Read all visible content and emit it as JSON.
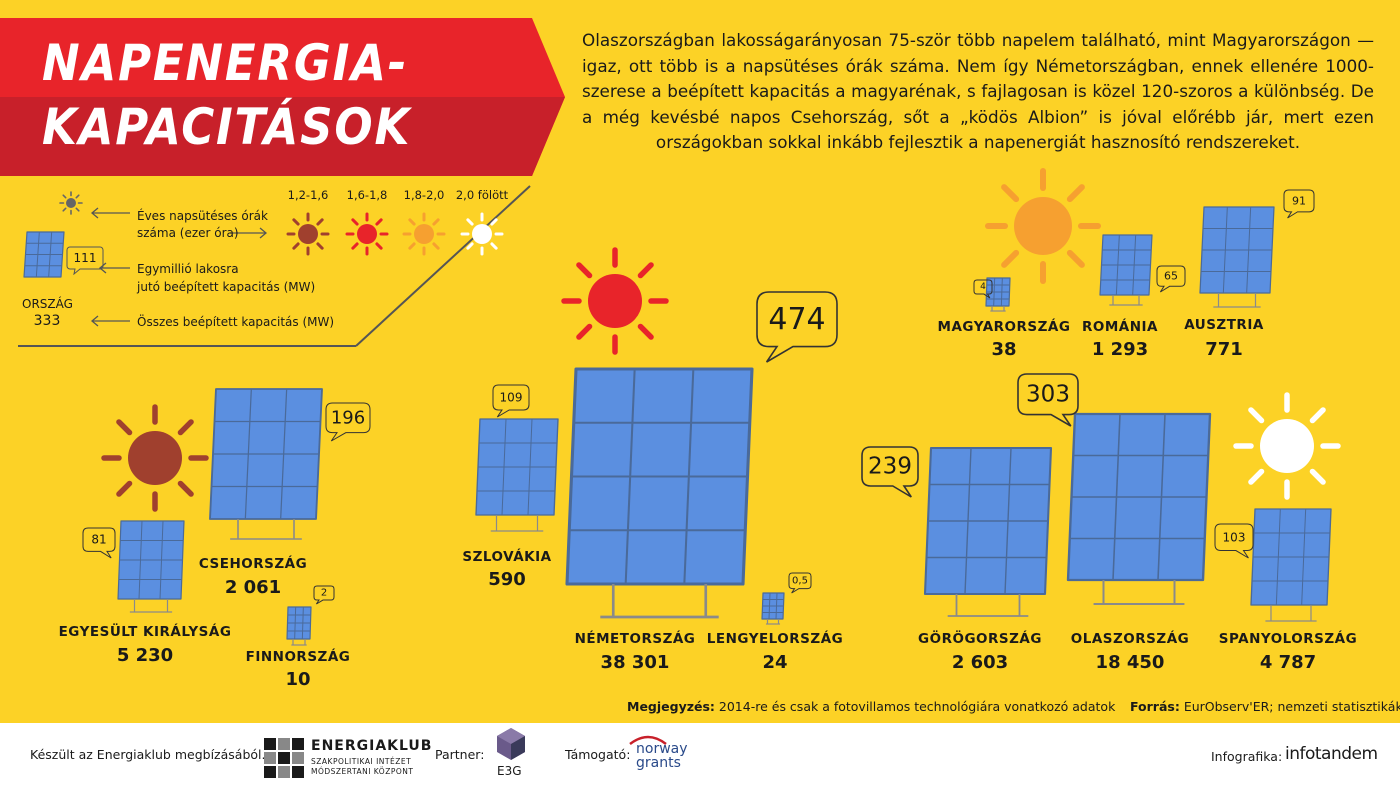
{
  "title": {
    "line1": "NAPENERGIA-",
    "line2": "KAPACITÁSOK"
  },
  "intro": "Olaszországban lakosságarányosan 75-ször több napelem található, mint Magyarországon — igaz, ott több is a napsütéses órák száma. Nem így Németországban, ennek ellenére 1000-szerese a beépített kapacitás a magyarénak, s fajlagosan is közel 120-szoros a különbség. De a még kevésbé napos Csehország, sőt a „ködös Albion” is jóval előrébb jár, mert ezen országokban sokkal inkább fejlesztik a napenergiát hasznosító rendszereket.",
  "legend": {
    "sun_label_1": "Éves napsütéses órák",
    "sun_label_2": "száma (ezer óra)",
    "cap_label_1": "Egymillió lakosra",
    "cap_label_2": "jutó beépített kapacitás (MW)",
    "total_label": "Összes beépített kapacitás (MW)",
    "example_bubble": "111",
    "example_country": "ORSZÁG",
    "example_total": "333",
    "ranges": [
      "1,2-1,6",
      "1,6-1,8",
      "1,8-2,0",
      "2,0 fölött"
    ],
    "range_colors": [
      "#a0402e",
      "#e8242a",
      "#f6a030",
      "#ffffff"
    ],
    "neutral_sun_color": "#666666"
  },
  "countries": [
    {
      "name": "MAGYARORSZÁG",
      "per_million": "4",
      "total": "38",
      "sun": "1,8-2,0"
    },
    {
      "name": "ROMÁNIA",
      "per_million": "65",
      "total": "1 293",
      "sun": "1,8-2,0"
    },
    {
      "name": "AUSZTRIA",
      "per_million": "91",
      "total": "771",
      "sun": "1,8-2,0"
    },
    {
      "name": "CSEHORSZÁG",
      "per_million": "196",
      "total": "2 061",
      "sun": "1,2-1,6"
    },
    {
      "name": "EGYESÜLT KIRÁLYSÁG",
      "per_million": "81",
      "total": "5 230",
      "sun": "1,2-1,6"
    },
    {
      "name": "FINNORSZÁG",
      "per_million": "2",
      "total": "10",
      "sun": "1,2-1,6"
    },
    {
      "name": "SZLOVÁKIA",
      "per_million": "109",
      "total": "590",
      "sun": "1,6-1,8"
    },
    {
      "name": "NÉMETORSZÁG",
      "per_million": "474",
      "total": "38 301",
      "sun": "1,6-1,8"
    },
    {
      "name": "LENGYELORSZÁG",
      "per_million": "0,5",
      "total": "24",
      "sun": "1,6-1,8"
    },
    {
      "name": "GÖRÖGORSZÁG",
      "per_million": "239",
      "total": "2 603",
      "sun": "2,0 fölött"
    },
    {
      "name": "OLASZORSZÁG",
      "per_million": "303",
      "total": "18 450",
      "sun": "2,0 fölött"
    },
    {
      "name": "SPANYOLORSZÁG",
      "per_million": "103",
      "total": "4 787",
      "sun": "2,0 fölött"
    }
  ],
  "note": {
    "label": "Megjegyzés:",
    "text": "2014-re és csak a fotovillamos technológiára vonatkozó adatok"
  },
  "source": {
    "label": "Forrás:",
    "text": "EurObserv'ER; nemzeti statisztikák"
  },
  "footer": {
    "made_for": "Készült az Energiaklub megbízásából.",
    "org_name": "ENERGIAKLUB",
    "org_sub1": "SZAKPOLITIKAI INTÉZET",
    "org_sub2": "MÓDSZERTANI KÖZPONT",
    "partner_label": "Partner:",
    "partner_name": "E3G",
    "support_label": "Támogató:",
    "support_name_1": "norway",
    "support_name_2": "grants",
    "infographic_label": "Infografika:",
    "infographic_by": "infotandem"
  },
  "colors": {
    "background": "#fcd226",
    "banner": "#e8242a",
    "panel": "#5b8fe0",
    "frame": "#4a6a9a"
  }
}
